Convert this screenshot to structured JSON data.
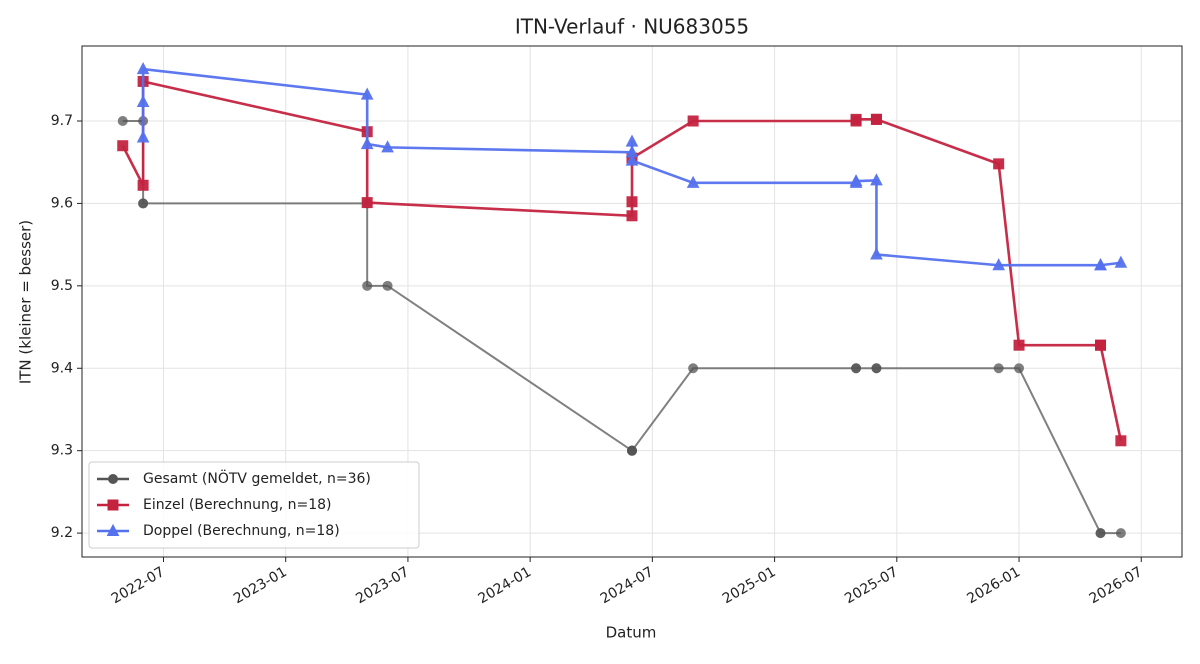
{
  "chart_data": {
    "type": "line",
    "title": "ITN-Verlauf · NU683055",
    "x_label": "Datum",
    "y_label": "ITN  (kleiner = besser)",
    "xlim": [
      "2022-03",
      "2026-09"
    ],
    "xticks": [
      "2022-07",
      "2023-01",
      "2023-07",
      "2024-01",
      "2024-07",
      "2025-01",
      "2025-07",
      "2026-01",
      "2026-07"
    ],
    "ylim": [
      9.171,
      9.791
    ],
    "yticks": [
      9.2,
      9.3,
      9.4,
      9.5,
      9.6,
      9.7
    ],
    "grid": true,
    "legend": "lower left",
    "series": [
      {
        "name": "Gesamt (NÖTV gemeldet, n=36)",
        "color": "#555555",
        "marker": "circle",
        "x": [
          "2022-05",
          "2022-06",
          "2022-06",
          "2022-06",
          "2023-05",
          "2023-05",
          "2023-06",
          "2024-06",
          "2024-06",
          "2024-06",
          "2024-06",
          "2024-09",
          "2025-05",
          "2025-05",
          "2025-06",
          "2025-06",
          "2025-12",
          "2026-01",
          "2026-05",
          "2026-05",
          "2026-06"
        ],
        "values": [
          9.7,
          9.7,
          9.6,
          9.6,
          9.6,
          9.5,
          9.5,
          9.3,
          9.3,
          9.3,
          9.3,
          9.4,
          9.4,
          9.4,
          9.4,
          9.4,
          9.4,
          9.4,
          9.2,
          9.2,
          9.2
        ]
      },
      {
        "name": "Einzel (Berechnung, n=18)",
        "color": "#c42340",
        "marker": "square",
        "x": [
          "2022-05",
          "2022-06",
          "2022-06",
          "2023-05",
          "2023-05",
          "2024-06",
          "2024-06",
          "2024-06",
          "2024-09",
          "2025-05",
          "2025-05",
          "2025-06",
          "2025-06",
          "2025-12",
          "2026-01",
          "2026-05",
          "2026-05",
          "2026-06"
        ],
        "values": [
          9.67,
          9.622,
          9.748,
          9.687,
          9.601,
          9.585,
          9.602,
          9.655,
          9.7,
          9.7,
          9.702,
          9.702,
          9.702,
          9.648,
          9.428,
          9.428,
          9.428,
          9.312
        ]
      },
      {
        "name": "Doppel (Berechnung, n=18)",
        "color": "#5571ee",
        "marker": "triangle",
        "x": [
          "2022-06",
          "2022-06",
          "2022-06",
          "2023-05",
          "2023-05",
          "2023-06",
          "2024-06",
          "2024-06",
          "2024-06",
          "2024-09",
          "2025-05",
          "2025-05",
          "2025-06",
          "2025-06",
          "2025-12",
          "2026-05",
          "2026-05",
          "2026-06"
        ],
        "values": [
          9.68,
          9.723,
          9.763,
          9.732,
          9.672,
          9.668,
          9.662,
          9.675,
          9.652,
          9.625,
          9.625,
          9.627,
          9.628,
          9.538,
          9.525,
          9.525,
          9.525,
          9.528
        ]
      }
    ]
  }
}
